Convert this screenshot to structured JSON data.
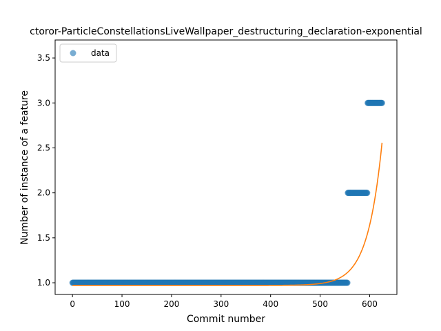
{
  "chart_data": {
    "type": "scatter",
    "title": "ctoror-ParticleConstellationsLiveWallpaper_destructuring_declaration-exponential",
    "xlabel": "Commit number",
    "ylabel": "Number of instance of a feature",
    "xlim": [
      -35,
      655
    ],
    "ylim": [
      0.87,
      3.7
    ],
    "xticks": [
      0,
      100,
      200,
      300,
      400,
      500,
      600
    ],
    "yticks": [
      1.0,
      1.5,
      2.0,
      2.5,
      3.0,
      3.5
    ],
    "legend": {
      "label": "data",
      "placement": "top-left"
    },
    "series": [
      {
        "name": "data",
        "kind": "points",
        "color": "#1f77b4",
        "segments": [
          {
            "y": 1,
            "x_start": 0,
            "x_end": 555
          },
          {
            "y": 2,
            "x_start": 556,
            "x_end": 595
          },
          {
            "y": 3,
            "x_start": 596,
            "x_end": 625
          }
        ]
      },
      {
        "name": "exponential fit",
        "kind": "line",
        "color": "#ff7f0e",
        "model": {
          "a": 0.97,
          "b": 7.3e-10,
          "c": 0.0344,
          "x_start": 0,
          "x_end": 625
        }
      }
    ]
  }
}
